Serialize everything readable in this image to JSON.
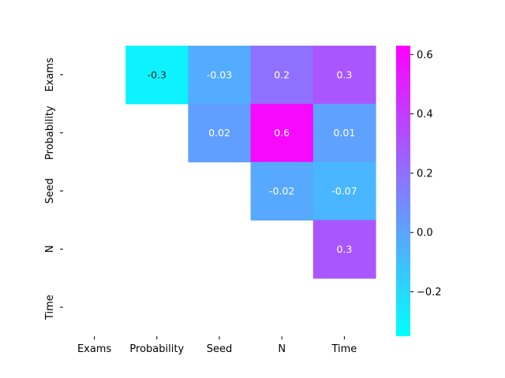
{
  "chart_data": {
    "type": "heatmap",
    "colormap": "cool",
    "title": "",
    "xlabel": "",
    "ylabel": "",
    "x_categories": [
      "Exams",
      "Probability",
      "Seed",
      "N",
      "Time"
    ],
    "y_categories": [
      "Exams",
      "Probability",
      "Seed",
      "N",
      "Time"
    ],
    "cells": [
      {
        "row": "Exams",
        "col": "Probability",
        "value": -0.3,
        "label": "-0.3"
      },
      {
        "row": "Exams",
        "col": "Seed",
        "value": -0.03,
        "label": "-0.03"
      },
      {
        "row": "Exams",
        "col": "N",
        "value": 0.2,
        "label": "0.2"
      },
      {
        "row": "Exams",
        "col": "Time",
        "value": 0.3,
        "label": "0.3"
      },
      {
        "row": "Probability",
        "col": "Seed",
        "value": 0.02,
        "label": "0.02"
      },
      {
        "row": "Probability",
        "col": "N",
        "value": 0.6,
        "label": "0.6"
      },
      {
        "row": "Probability",
        "col": "Time",
        "value": 0.01,
        "label": "0.01"
      },
      {
        "row": "Seed",
        "col": "N",
        "value": -0.02,
        "label": "-0.02"
      },
      {
        "row": "Seed",
        "col": "Time",
        "value": -0.07,
        "label": "-0.07"
      },
      {
        "row": "N",
        "col": "Time",
        "value": 0.3,
        "label": "0.3"
      }
    ],
    "colorbar": {
      "min": -0.35,
      "max": 0.63,
      "ticks": [
        -0.2,
        0.0,
        0.2,
        0.4,
        0.6
      ],
      "tick_labels": [
        "−0.2",
        "0.0",
        "0.2",
        "0.4",
        "0.6"
      ]
    },
    "grid": false,
    "legend": "colorbar-right"
  }
}
